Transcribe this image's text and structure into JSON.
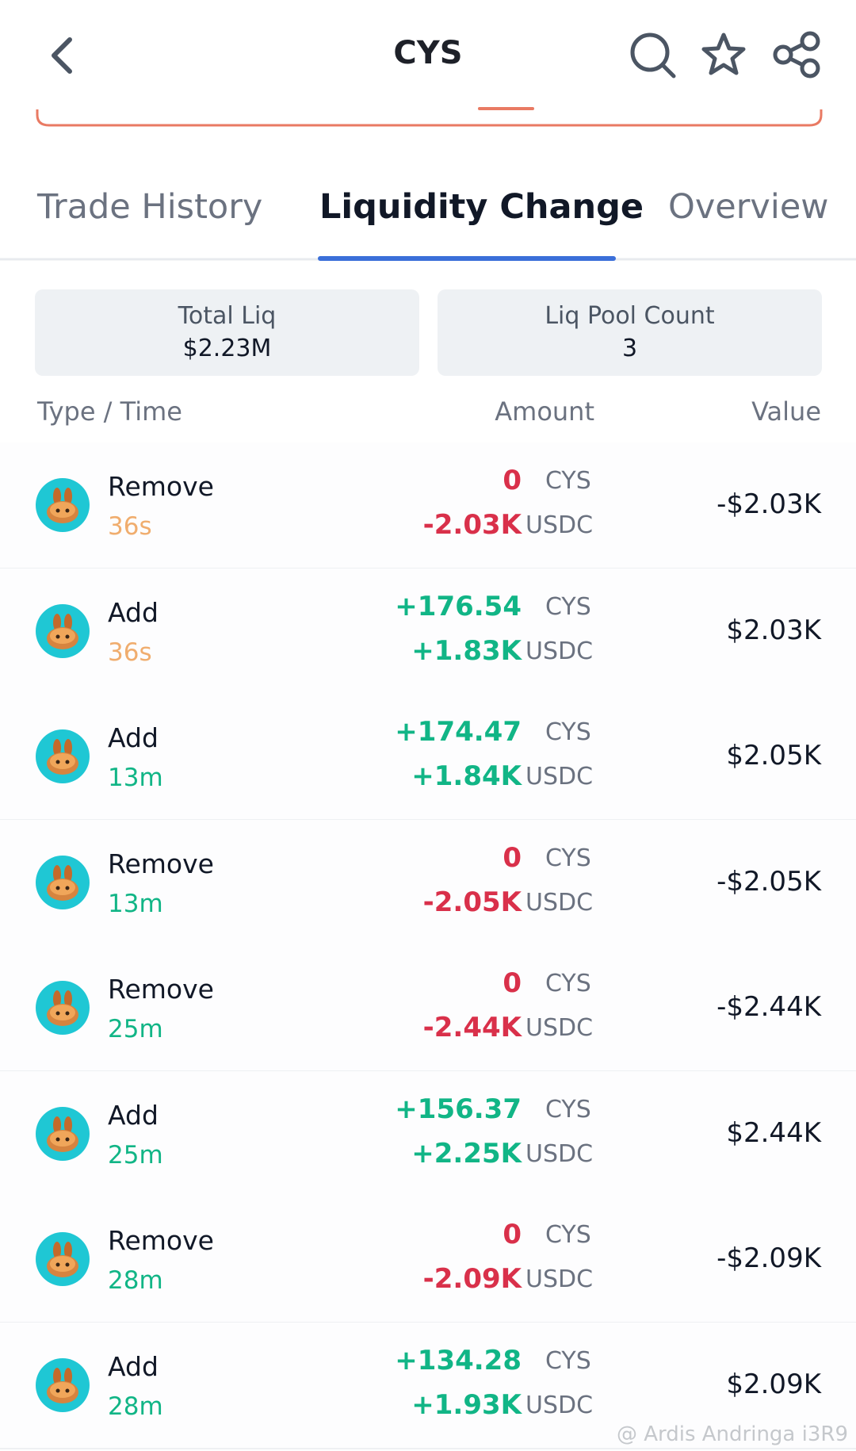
{
  "header": {
    "title": "CYS"
  },
  "tabs": [
    "Trade History",
    "Liquidity Change",
    "Overview"
  ],
  "stats": [
    {
      "label": "Total Liq",
      "value": "$2.23M"
    },
    {
      "label": "Liq Pool Count",
      "value": "3"
    }
  ],
  "columns": [
    "Type / Time",
    "Amount",
    "Value"
  ],
  "rows": [
    {
      "type": "Remove",
      "time": "36s",
      "amount_1": "0",
      "unit_1": "CYS",
      "amount_2": "-2.03K",
      "unit_2": "USDC",
      "value": "-$2.03K"
    },
    {
      "type": "Add",
      "time": "36s",
      "amount_1": "+176.54",
      "unit_1": "CYS",
      "amount_2": "+1.83K",
      "unit_2": "USDC",
      "value": "$2.03K"
    },
    {
      "type": "Add",
      "time": "13m",
      "amount_1": "+174.47",
      "unit_1": "CYS",
      "amount_2": "+1.84K",
      "unit_2": "USDC",
      "value": "$2.05K"
    },
    {
      "type": "Remove",
      "time": "13m",
      "amount_1": "0",
      "unit_1": "CYS",
      "amount_2": "-2.05K",
      "unit_2": "USDC",
      "value": "-$2.05K"
    },
    {
      "type": "Remove",
      "time": "25m",
      "amount_1": "0",
      "unit_1": "CYS",
      "amount_2": "-2.44K",
      "unit_2": "USDC",
      "value": "-$2.44K"
    },
    {
      "type": "Add",
      "time": "25m",
      "amount_1": "+156.37",
      "unit_1": "CYS",
      "amount_2": "+2.25K",
      "unit_2": "USDC",
      "value": "$2.44K"
    },
    {
      "type": "Remove",
      "time": "28m",
      "amount_1": "0",
      "unit_1": "CYS",
      "amount_2": "-2.09K",
      "unit_2": "USDC",
      "value": "-$2.09K"
    },
    {
      "type": "Add",
      "time": "28m",
      "amount_1": "+134.28",
      "unit_1": "CYS",
      "amount_2": "+1.93K",
      "unit_2": "USDC",
      "value": "$2.09K"
    }
  ],
  "watermark": "@ Ardis Andringa i3R9"
}
